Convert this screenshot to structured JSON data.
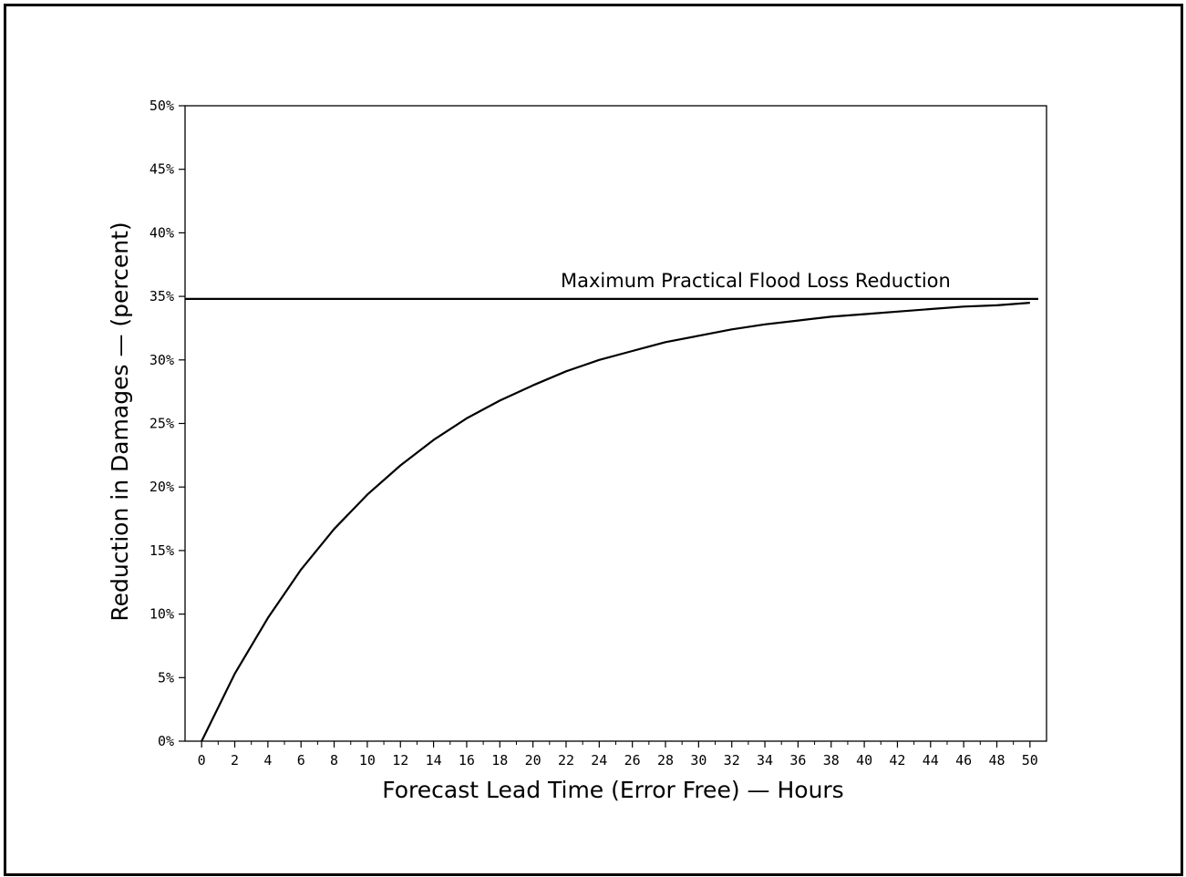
{
  "chart_data": {
    "type": "line",
    "title": "",
    "xlabel": "Forecast Lead Time (Error Free) — Hours",
    "ylabel": "Reduction in Damages — (percent)",
    "xlim": [
      -1,
      51
    ],
    "ylim": [
      0,
      50
    ],
    "x_ticks": [
      0,
      2,
      4,
      6,
      8,
      10,
      12,
      14,
      16,
      18,
      20,
      22,
      24,
      26,
      28,
      30,
      32,
      34,
      36,
      38,
      40,
      42,
      44,
      46,
      48,
      50
    ],
    "y_ticks": [
      0,
      5,
      10,
      15,
      20,
      25,
      30,
      35,
      40,
      45,
      50
    ],
    "y_tick_labels": [
      "0%",
      "5%",
      "10%",
      "15%",
      "20%",
      "25%",
      "30%",
      "35%",
      "40%",
      "45%",
      "50%"
    ],
    "grid": false,
    "reference_line": {
      "label": "Maximum Practical Flood Loss Reduction",
      "y": 34.8,
      "x_range": [
        -1,
        50.5
      ]
    },
    "series": [
      {
        "x": [
          0,
          2,
          4,
          6,
          8,
          10,
          12,
          14,
          16,
          18,
          20,
          22,
          24,
          26,
          28,
          30,
          32,
          34,
          36,
          38,
          40,
          42,
          44,
          46,
          48,
          50
        ],
        "y": [
          0,
          5.3,
          9.7,
          13.5,
          16.7,
          19.4,
          21.7,
          23.7,
          25.4,
          26.8,
          28.0,
          29.1,
          30.0,
          30.7,
          31.4,
          31.9,
          32.4,
          32.8,
          33.1,
          33.4,
          33.6,
          33.8,
          34.0,
          34.2,
          34.3,
          34.5
        ]
      }
    ]
  }
}
